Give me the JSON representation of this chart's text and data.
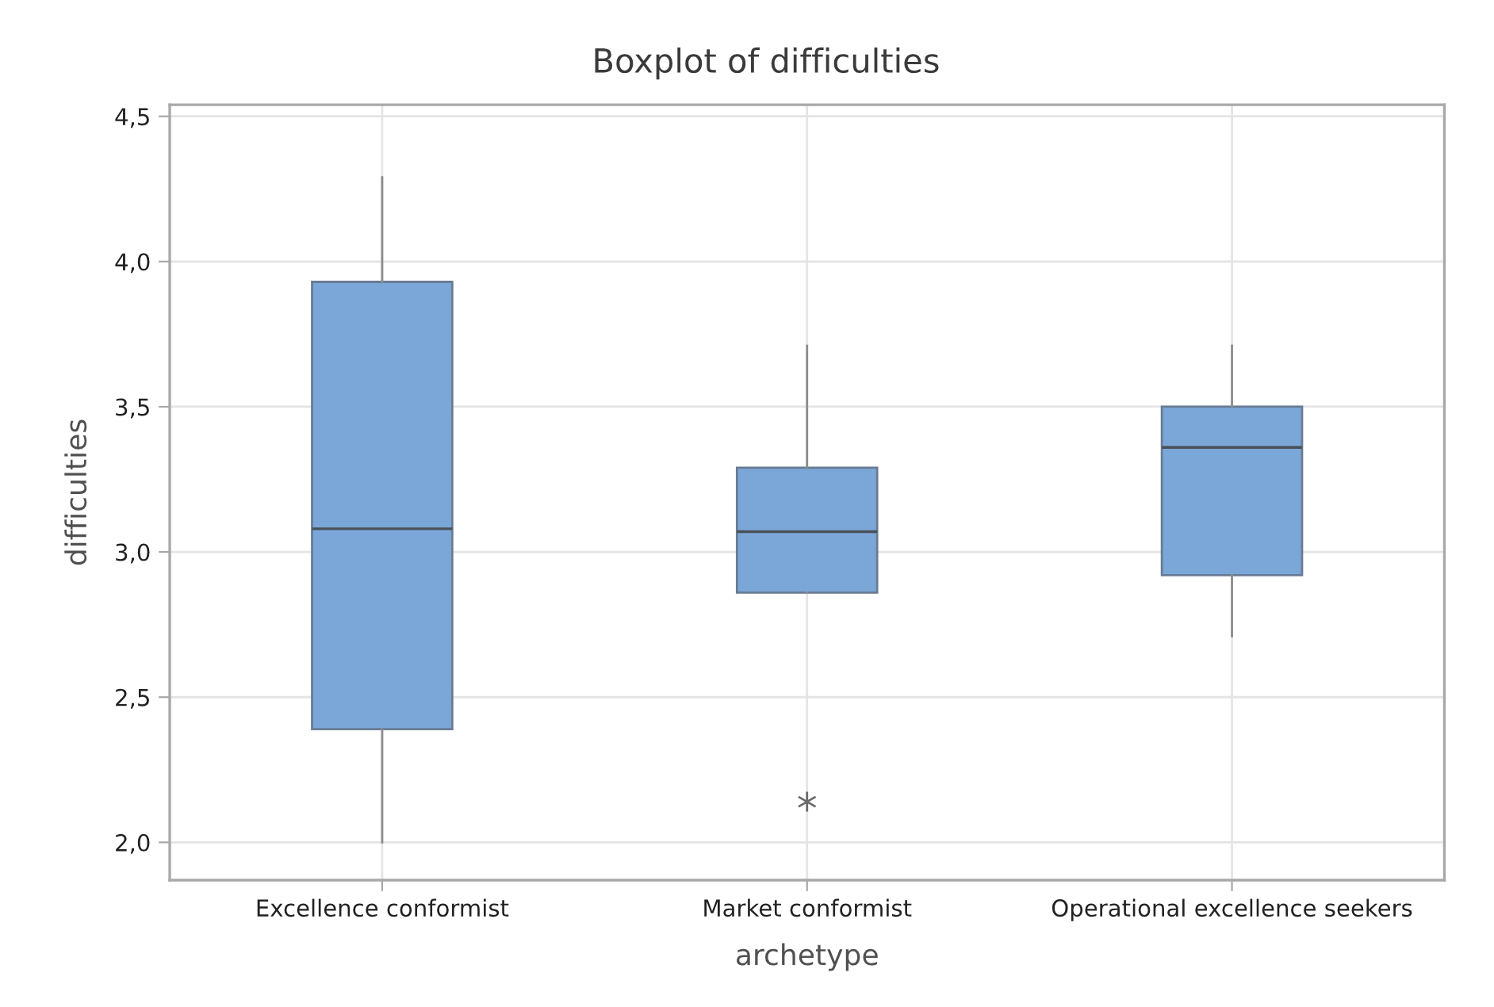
{
  "chart_data": {
    "type": "box",
    "title": "Boxplot of difficulties",
    "xlabel": "archetype",
    "ylabel": "difficulties",
    "categories": [
      "Excellence conformist",
      "Market conformist",
      "Operational excellence seekers"
    ],
    "series": [
      {
        "color": "#7ba7d8",
        "boxes": [
          {
            "low": 2.0,
            "q1": 2.39,
            "median": 3.08,
            "q3": 3.93,
            "high": 4.29
          },
          {
            "low": 2.86,
            "q1": 2.86,
            "median": 3.07,
            "q3": 3.29,
            "high": 3.71,
            "outliers": [
              2.14
            ]
          },
          {
            "low": 2.71,
            "q1": 2.92,
            "median": 3.36,
            "q3": 3.5,
            "high": 3.71
          }
        ]
      }
    ],
    "ylim": [
      1.87,
      4.54
    ],
    "yticks": [
      {
        "value": 2.0,
        "label": "2,0"
      },
      {
        "value": 2.5,
        "label": "2,5"
      },
      {
        "value": 3.0,
        "label": "3,0"
      },
      {
        "value": 3.5,
        "label": "3,5"
      },
      {
        "value": 4.0,
        "label": "4,0"
      },
      {
        "value": 4.5,
        "label": "4,5"
      }
    ],
    "grid": true,
    "marker": "star"
  }
}
